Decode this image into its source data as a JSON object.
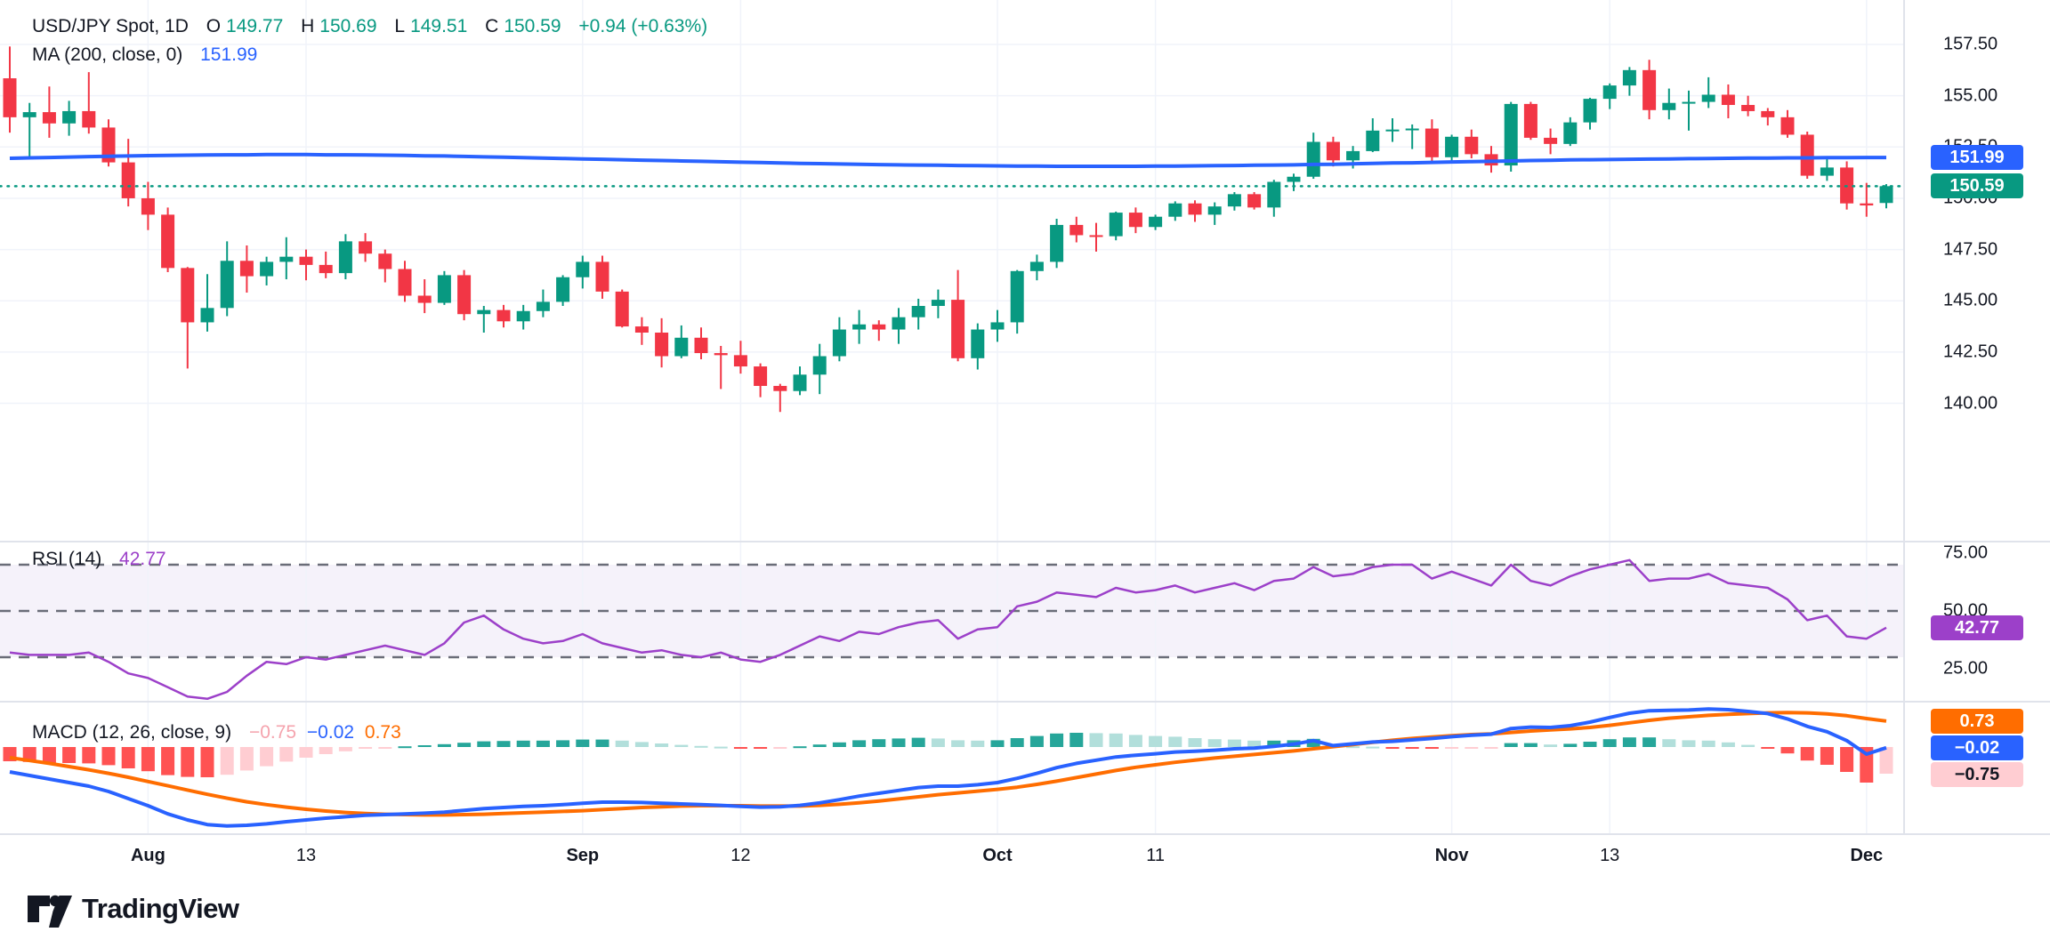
{
  "legend": {
    "symbol": "USD/JPY Spot, 1D",
    "ohlc": {
      "o_label": "O",
      "o": "149.77",
      "h_label": "H",
      "h": "150.69",
      "l_label": "L",
      "l": "149.51",
      "c_label": "C",
      "c": "150.59",
      "change": "+0.94 (+0.63%)"
    },
    "ma": {
      "label": "MA (200, close, 0)",
      "value": "151.99"
    },
    "rsi": {
      "label": "RSI (14)",
      "value": "42.77"
    },
    "macd": {
      "label": "MACD (12, 26, close, 9)",
      "hist_value": "−0.75",
      "macd_value": "−0.02",
      "signal_value": "0.73"
    }
  },
  "badges": {
    "ma_value": "151.99",
    "last_price": "150.59",
    "rsi_value": "42.77",
    "macd_signal": "0.73",
    "macd_line": "−0.02",
    "macd_hist": "−0.75"
  },
  "logo": {
    "text": "TradingView"
  },
  "colors": {
    "up": "#089981",
    "down": "#f23645",
    "ma_line": "#2962ff",
    "rsi_line": "#9c40c9",
    "rsi_badge": "#9c40c9",
    "rsi_band_fill": "rgba(126,87,194,0.08)",
    "rsi_level_dash": "#6a6d78",
    "macd_line": "#2962ff",
    "signal_line": "#ff6d00",
    "hist_pos_grow": "#26a69a",
    "hist_pos_fall": "#b2dfdb",
    "hist_neg_fall": "#ff5252",
    "hist_neg_rise": "#ffcdd2",
    "grid": "#f0f3fa",
    "separator": "#e0e3eb",
    "axis_text": "#131722",
    "badge_blue": "#2962ff",
    "badge_green": "#089981",
    "badge_orange": "#ff6d00",
    "badge_pink": "#ffcdd2"
  },
  "chart_data": {
    "type": "candlestick_with_indicators",
    "title": "USD/JPY Spot, 1D",
    "interval": "1D",
    "panes": [
      "price+MA200",
      "RSI(14)",
      "MACD(12,26,close,9)"
    ],
    "price_ticks": [
      157.5,
      155.0,
      152.5,
      150.0,
      147.5,
      145.0,
      142.5,
      140.0
    ],
    "rsi_ticks": [
      75.0,
      50.0,
      25.0
    ],
    "rsi_levels": [
      70,
      50,
      30
    ],
    "last_close": 150.59,
    "ma200_last": 151.99,
    "rsi_last": 42.77,
    "macd_last": -0.02,
    "signal_last": 0.73,
    "hist_last": -0.75,
    "time_ticks": [
      {
        "label": "Aug",
        "index": 7,
        "major": true
      },
      {
        "label": "13",
        "index": 15,
        "major": false
      },
      {
        "label": "Sep",
        "index": 29,
        "major": true
      },
      {
        "label": "12",
        "index": 37,
        "major": false
      },
      {
        "label": "Oct",
        "index": 50,
        "major": true
      },
      {
        "label": "11",
        "index": 58,
        "major": false
      },
      {
        "label": "Nov",
        "index": 73,
        "major": true
      },
      {
        "label": "13",
        "index": 81,
        "major": false
      },
      {
        "label": "Dec",
        "index": 94,
        "major": true
      }
    ],
    "candles": [
      [
        155.85,
        157.4,
        153.2,
        153.95
      ],
      [
        153.95,
        154.65,
        151.9,
        154.2
      ],
      [
        154.2,
        155.45,
        152.95,
        153.65
      ],
      [
        153.65,
        154.75,
        153.05,
        154.25
      ],
      [
        154.25,
        156.15,
        153.15,
        153.45
      ],
      [
        153.45,
        153.85,
        151.55,
        151.75
      ],
      [
        151.75,
        152.9,
        149.6,
        150.0
      ],
      [
        150.0,
        150.8,
        148.45,
        149.2
      ],
      [
        149.2,
        149.55,
        146.4,
        146.6
      ],
      [
        146.6,
        146.65,
        141.7,
        143.95
      ],
      [
        143.95,
        146.3,
        143.5,
        144.65
      ],
      [
        144.65,
        147.9,
        144.25,
        146.95
      ],
      [
        146.95,
        147.7,
        145.4,
        146.2
      ],
      [
        146.2,
        147.15,
        145.75,
        146.9
      ],
      [
        146.9,
        148.1,
        146.05,
        147.15
      ],
      [
        147.15,
        147.5,
        146.0,
        146.75
      ],
      [
        146.75,
        147.4,
        146.1,
        146.35
      ],
      [
        146.35,
        148.25,
        146.05,
        147.9
      ],
      [
        147.9,
        148.3,
        146.9,
        147.3
      ],
      [
        147.3,
        147.5,
        145.9,
        146.55
      ],
      [
        146.55,
        146.95,
        144.95,
        145.25
      ],
      [
        145.25,
        146.05,
        144.4,
        144.9
      ],
      [
        144.9,
        146.45,
        144.8,
        146.25
      ],
      [
        146.25,
        146.5,
        144.05,
        144.35
      ],
      [
        144.35,
        144.75,
        143.45,
        144.55
      ],
      [
        144.55,
        144.8,
        143.7,
        144.0
      ],
      [
        144.0,
        144.8,
        143.6,
        144.5
      ],
      [
        144.5,
        145.55,
        144.2,
        144.95
      ],
      [
        144.95,
        146.25,
        144.75,
        146.15
      ],
      [
        146.15,
        147.2,
        145.6,
        146.9
      ],
      [
        146.9,
        147.2,
        145.1,
        145.45
      ],
      [
        145.45,
        145.55,
        143.7,
        143.75
      ],
      [
        143.75,
        144.2,
        142.85,
        143.45
      ],
      [
        143.45,
        144.15,
        141.75,
        142.3
      ],
      [
        142.3,
        143.8,
        142.2,
        143.2
      ],
      [
        143.2,
        143.7,
        142.15,
        142.45
      ],
      [
        142.45,
        142.8,
        140.7,
        142.35
      ],
      [
        142.35,
        143.05,
        141.45,
        141.8
      ],
      [
        141.8,
        141.95,
        140.3,
        140.85
      ],
      [
        140.85,
        140.95,
        139.58,
        140.6
      ],
      [
        140.6,
        141.8,
        140.4,
        141.4
      ],
      [
        141.4,
        142.9,
        140.45,
        142.3
      ],
      [
        142.3,
        144.2,
        142.05,
        143.6
      ],
      [
        143.6,
        144.55,
        142.9,
        143.85
      ],
      [
        143.85,
        144.05,
        143.05,
        143.6
      ],
      [
        143.6,
        144.65,
        142.9,
        144.2
      ],
      [
        144.2,
        145.1,
        143.6,
        144.75
      ],
      [
        144.75,
        145.55,
        144.15,
        145.05
      ],
      [
        145.05,
        146.5,
        142.05,
        142.2
      ],
      [
        142.2,
        143.9,
        141.65,
        143.6
      ],
      [
        143.6,
        144.55,
        143.0,
        143.95
      ],
      [
        143.95,
        146.5,
        143.4,
        146.45
      ],
      [
        146.45,
        147.25,
        146.0,
        146.9
      ],
      [
        146.9,
        149.0,
        146.6,
        148.7
      ],
      [
        148.7,
        149.1,
        147.85,
        148.2
      ],
      [
        148.2,
        148.8,
        147.4,
        148.15
      ],
      [
        148.15,
        149.35,
        147.95,
        149.3
      ],
      [
        149.3,
        149.55,
        148.3,
        148.6
      ],
      [
        148.6,
        149.2,
        148.45,
        149.1
      ],
      [
        149.1,
        149.85,
        148.9,
        149.75
      ],
      [
        149.75,
        149.9,
        148.85,
        149.2
      ],
      [
        149.2,
        149.8,
        148.7,
        149.6
      ],
      [
        149.6,
        150.3,
        149.4,
        150.2
      ],
      [
        150.2,
        150.3,
        149.45,
        149.55
      ],
      [
        149.55,
        150.9,
        149.1,
        150.8
      ],
      [
        150.8,
        151.2,
        150.35,
        151.05
      ],
      [
        151.05,
        153.2,
        150.95,
        152.75
      ],
      [
        152.75,
        153.0,
        151.55,
        151.85
      ],
      [
        151.85,
        152.55,
        151.45,
        152.3
      ],
      [
        152.3,
        153.9,
        152.25,
        153.3
      ],
      [
        153.3,
        153.9,
        152.75,
        153.35
      ],
      [
        153.35,
        153.6,
        152.4,
        153.4
      ],
      [
        153.4,
        153.85,
        151.8,
        152.0
      ],
      [
        152.0,
        153.1,
        151.8,
        153.0
      ],
      [
        153.0,
        153.35,
        151.95,
        152.15
      ],
      [
        152.15,
        152.55,
        151.25,
        151.6
      ],
      [
        151.6,
        154.7,
        151.3,
        154.6
      ],
      [
        154.6,
        154.7,
        152.85,
        152.95
      ],
      [
        152.95,
        153.4,
        152.15,
        152.65
      ],
      [
        152.65,
        153.95,
        152.55,
        153.7
      ],
      [
        153.7,
        154.9,
        153.35,
        154.85
      ],
      [
        154.85,
        155.6,
        154.35,
        155.5
      ],
      [
        155.5,
        156.4,
        155.0,
        156.25
      ],
      [
        156.25,
        156.75,
        153.85,
        154.3
      ],
      [
        154.3,
        155.35,
        153.85,
        154.65
      ],
      [
        154.65,
        155.25,
        153.3,
        154.7
      ],
      [
        154.7,
        155.9,
        154.4,
        155.05
      ],
      [
        155.05,
        155.55,
        153.9,
        154.55
      ],
      [
        154.55,
        155.0,
        154.0,
        154.25
      ],
      [
        154.25,
        154.4,
        153.55,
        153.95
      ],
      [
        153.95,
        154.3,
        152.95,
        153.1
      ],
      [
        153.1,
        153.25,
        150.95,
        151.1
      ],
      [
        151.1,
        151.95,
        150.85,
        151.5
      ],
      [
        151.5,
        151.8,
        149.45,
        149.75
      ],
      [
        149.75,
        150.75,
        149.1,
        149.65
      ],
      [
        149.77,
        150.69,
        149.51,
        150.59
      ]
    ],
    "ma200": [
      151.95,
      151.97,
      151.99,
      152.01,
      152.03,
      152.05,
      152.06,
      152.08,
      152.09,
      152.1,
      152.11,
      152.12,
      152.12,
      152.13,
      152.13,
      152.13,
      152.12,
      152.12,
      152.11,
      152.1,
      152.09,
      152.07,
      152.06,
      152.04,
      152.02,
      152.0,
      151.98,
      151.96,
      151.94,
      151.92,
      151.9,
      151.88,
      151.86,
      151.84,
      151.82,
      151.8,
      151.78,
      151.76,
      151.74,
      151.72,
      151.7,
      151.69,
      151.67,
      151.66,
      151.64,
      151.63,
      151.62,
      151.61,
      151.6,
      151.59,
      151.58,
      151.57,
      151.57,
      151.56,
      151.56,
      151.56,
      151.56,
      151.56,
      151.57,
      151.57,
      151.58,
      151.59,
      151.6,
      151.61,
      151.62,
      151.63,
      151.65,
      151.66,
      151.68,
      151.7,
      151.72,
      151.73,
      151.75,
      151.77,
      151.79,
      151.8,
      151.82,
      151.84,
      151.85,
      151.87,
      151.88,
      151.89,
      151.9,
      151.91,
      151.92,
      151.93,
      151.94,
      151.95,
      151.96,
      151.96,
      151.97,
      151.97,
      151.98,
      151.98,
      151.99,
      151.99
    ],
    "rsi14": [
      32,
      31,
      31,
      31,
      32,
      28,
      23,
      21,
      17,
      13,
      12,
      15,
      22,
      28,
      27,
      30,
      29,
      31,
      33,
      35,
      33,
      31,
      36,
      45,
      48,
      42,
      38,
      36,
      37,
      40,
      36,
      34,
      32,
      33,
      31,
      30,
      32,
      29,
      28,
      31,
      35,
      39,
      37,
      41,
      40,
      43,
      45,
      46,
      38,
      42,
      43,
      52,
      54,
      58,
      57,
      56,
      60,
      58,
      59,
      61,
      58,
      60,
      62,
      59,
      63,
      64,
      69,
      65,
      66,
      69,
      70,
      70,
      64,
      67,
      64,
      61,
      70,
      63,
      61,
      65,
      68,
      70,
      72,
      63,
      64,
      64,
      66,
      62,
      61,
      60,
      55,
      46,
      48,
      39,
      38,
      42.77
    ],
    "macd_line": [
      -0.7,
      -0.8,
      -0.9,
      -1.0,
      -1.1,
      -1.25,
      -1.45,
      -1.65,
      -1.88,
      -2.05,
      -2.18,
      -2.22,
      -2.2,
      -2.16,
      -2.1,
      -2.05,
      -2.0,
      -1.96,
      -1.92,
      -1.9,
      -1.88,
      -1.86,
      -1.83,
      -1.78,
      -1.73,
      -1.7,
      -1.67,
      -1.65,
      -1.62,
      -1.58,
      -1.55,
      -1.55,
      -1.56,
      -1.58,
      -1.6,
      -1.62,
      -1.64,
      -1.67,
      -1.69,
      -1.68,
      -1.64,
      -1.57,
      -1.48,
      -1.38,
      -1.3,
      -1.22,
      -1.14,
      -1.1,
      -1.1,
      -1.06,
      -1.0,
      -0.88,
      -0.74,
      -0.58,
      -0.46,
      -0.37,
      -0.28,
      -0.23,
      -0.19,
      -0.14,
      -0.12,
      -0.09,
      -0.05,
      -0.03,
      0.02,
      0.08,
      0.18,
      0.04,
      0.09,
      0.14,
      0.16,
      0.2,
      0.24,
      0.29,
      0.33,
      0.36,
      0.52,
      0.56,
      0.55,
      0.6,
      0.7,
      0.83,
      0.95,
      1.02,
      1.03,
      1.04,
      1.07,
      1.05,
      1.0,
      0.94,
      0.79,
      0.58,
      0.43,
      0.18,
      -0.2,
      -0.02
    ],
    "signal_line": [
      -0.3,
      -0.38,
      -0.46,
      -0.55,
      -0.64,
      -0.74,
      -0.85,
      -0.97,
      -1.09,
      -1.21,
      -1.33,
      -1.44,
      -1.54,
      -1.62,
      -1.69,
      -1.75,
      -1.8,
      -1.84,
      -1.87,
      -1.89,
      -1.9,
      -1.91,
      -1.91,
      -1.9,
      -1.89,
      -1.87,
      -1.85,
      -1.83,
      -1.81,
      -1.79,
      -1.76,
      -1.73,
      -1.7,
      -1.68,
      -1.66,
      -1.65,
      -1.65,
      -1.65,
      -1.66,
      -1.66,
      -1.66,
      -1.64,
      -1.61,
      -1.57,
      -1.52,
      -1.46,
      -1.4,
      -1.34,
      -1.29,
      -1.24,
      -1.19,
      -1.13,
      -1.05,
      -0.96,
      -0.86,
      -0.76,
      -0.66,
      -0.57,
      -0.5,
      -0.43,
      -0.37,
      -0.31,
      -0.26,
      -0.21,
      -0.16,
      -0.11,
      -0.05,
      0.01,
      0.07,
      0.13,
      0.19,
      0.24,
      0.28,
      0.32,
      0.35,
      0.37,
      0.41,
      0.45,
      0.48,
      0.51,
      0.55,
      0.61,
      0.68,
      0.75,
      0.81,
      0.85,
      0.89,
      0.92,
      0.94,
      0.96,
      0.97,
      0.96,
      0.93,
      0.88,
      0.8,
      0.73
    ]
  }
}
